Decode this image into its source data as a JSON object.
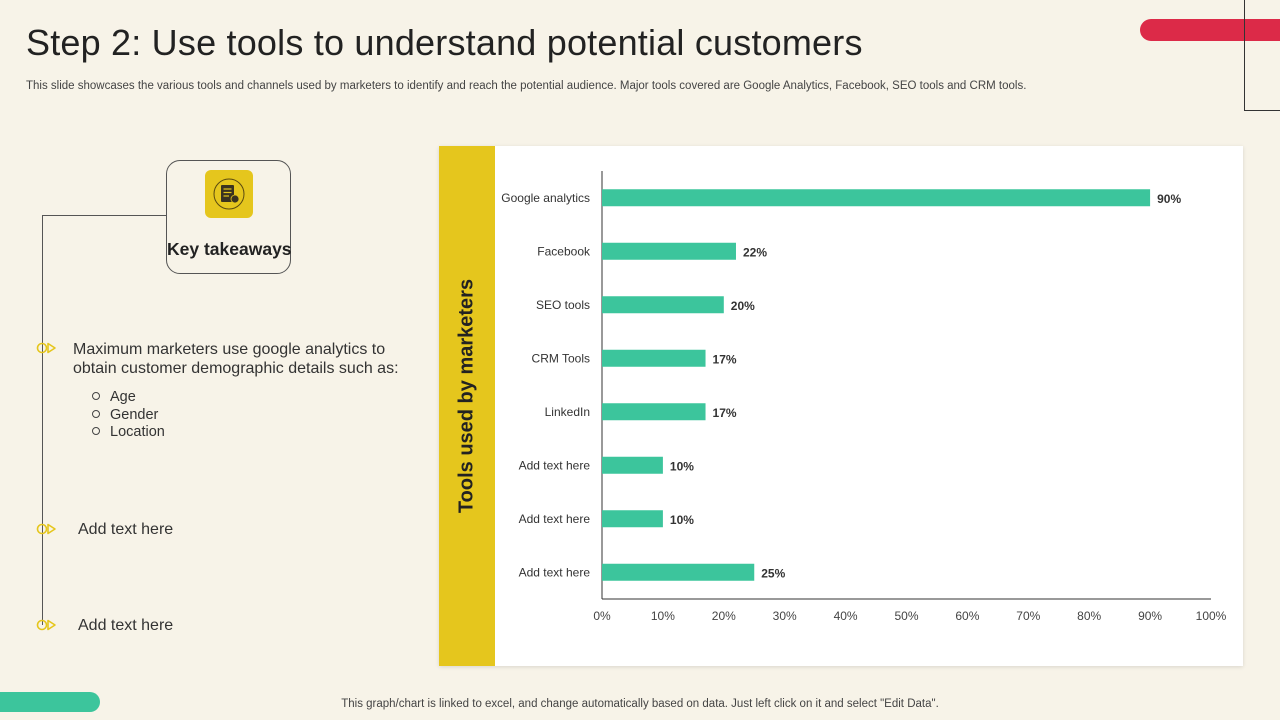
{
  "slide": {
    "title": "Step 2: Use tools to understand potential customers",
    "subtitle": "This slide showcases the various tools and channels used by marketers to identify and reach the potential audience. Major tools covered are Google Analytics,  Facebook, SEO tools and CRM tools.",
    "footer": "This graph/chart is linked to excel,  and change automatically based on data. Just left click on it and select \"Edit Data\"."
  },
  "takeaways": {
    "heading": "Key takeaways",
    "icon": "document-icon",
    "points": [
      {
        "text_line1": "Maximum marketers use google analytics to",
        "text_line2": "obtain customer demographic details such as:",
        "sub_items": [
          "Age",
          "Gender",
          "Location"
        ]
      },
      {
        "text": "Add text here"
      },
      {
        "text": "Add text here"
      }
    ]
  },
  "colors": {
    "accent_yellow": "#e5c61d",
    "bar_teal": "#3cc59c",
    "accent_red": "#dc2a48"
  },
  "chart_data": {
    "type": "bar",
    "orientation": "horizontal",
    "title": "",
    "ylabel": "Tools used by marketers",
    "xlabel": "",
    "categories": [
      "Google analytics",
      "Facebook",
      "SEO tools",
      "CRM Tools",
      "LinkedIn",
      "Add text here",
      "Add text here",
      "Add text here"
    ],
    "values": [
      90,
      22,
      20,
      17,
      17,
      10,
      10,
      25
    ],
    "value_labels": [
      "90%",
      "22%",
      "20%",
      "17%",
      "17%",
      "10%",
      "10%",
      "25%"
    ],
    "xlim": [
      0,
      100
    ],
    "x_ticks": [
      "0%",
      "10%",
      "20%",
      "30%",
      "40%",
      "50%",
      "60%",
      "70%",
      "80%",
      "90%",
      "100%"
    ],
    "grid": false,
    "legend": "none"
  }
}
